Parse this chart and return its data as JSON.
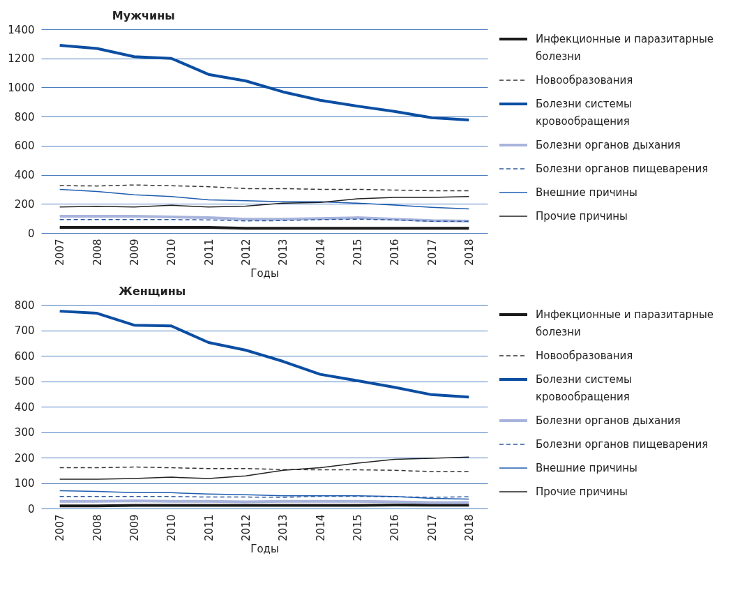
{
  "chart_data": [
    {
      "type": "line",
      "title": "Мужчины",
      "xlabel": "Годы",
      "legend": "right",
      "grid": "y",
      "marker": "none",
      "categories": [
        "2007",
        "2008",
        "2009",
        "2010",
        "2011",
        "2012",
        "2013",
        "2014",
        "2015",
        "2016",
        "2017",
        "2018"
      ],
      "ylim": [
        0,
        1400
      ],
      "yticks": [
        0,
        200,
        400,
        600,
        800,
        1000,
        1200,
        1400
      ],
      "series": [
        {
          "name": "Инфекционные и паразитарные болезни",
          "color": "#1a1a1a",
          "line_style": "solid",
          "values": [
            38,
            38,
            38,
            38,
            38,
            32,
            32,
            32,
            32,
            32,
            32,
            32
          ]
        },
        {
          "name": "Новообразования",
          "color": "#333333",
          "line_style": "dashed",
          "values": [
            325,
            323,
            330,
            325,
            318,
            305,
            305,
            300,
            300,
            295,
            290,
            290
          ]
        },
        {
          "name": "Болезни системы кровообращения",
          "color": "#0b4ea2",
          "line_style": "solid",
          "values": [
            1290,
            1268,
            1212,
            1200,
            1090,
            1045,
            970,
            912,
            872,
            835,
            792,
            777
          ]
        },
        {
          "name": "Болезни органов дыхания",
          "color": "#a9b4dc",
          "line_style": "solid",
          "values": [
            115,
            115,
            115,
            110,
            105,
            95,
            95,
            100,
            105,
            95,
            85,
            82
          ]
        },
        {
          "name": "Болезни органов пищеварения",
          "color": "#2c5aa0",
          "line_style": "dashed",
          "values": [
            92,
            92,
            92,
            92,
            90,
            83,
            85,
            92,
            95,
            90,
            80,
            80
          ]
        },
        {
          "name": "Внешние причины",
          "color": "#1f5db0",
          "line_style": "solid",
          "values": [
            300,
            285,
            262,
            250,
            228,
            222,
            215,
            215,
            205,
            192,
            176,
            165
          ]
        },
        {
          "name": "Прочие причины",
          "color": "#222222",
          "line_style": "solid",
          "values": [
            178,
            183,
            178,
            190,
            178,
            185,
            205,
            210,
            235,
            245,
            245,
            250
          ]
        }
      ]
    },
    {
      "type": "line",
      "title": "Женщины",
      "xlabel": "Годы",
      "legend": "right",
      "grid": "y",
      "marker": "none",
      "categories": [
        "2007",
        "2008",
        "2009",
        "2010",
        "2011",
        "2012",
        "2013",
        "2014",
        "2015",
        "2016",
        "2017",
        "2018"
      ],
      "ylim": [
        0,
        800
      ],
      "yticks": [
        0,
        100,
        200,
        300,
        400,
        500,
        600,
        700,
        800
      ],
      "series": [
        {
          "name": "Инфекционные и паразитарные болезни",
          "color": "#1a1a1a",
          "line_style": "solid",
          "values": [
            10,
            10,
            12,
            12,
            12,
            12,
            12,
            12,
            12,
            14,
            13,
            13
          ]
        },
        {
          "name": "Новообразования",
          "color": "#333333",
          "line_style": "dashed",
          "values": [
            160,
            160,
            163,
            160,
            157,
            157,
            153,
            152,
            152,
            150,
            145,
            145
          ]
        },
        {
          "name": "Болезни системы кровообращения",
          "color": "#0b4ea2",
          "line_style": "solid",
          "values": [
            775,
            767,
            720,
            717,
            652,
            622,
            578,
            527,
            502,
            476,
            447,
            438
          ]
        },
        {
          "name": "Болезни органов дыхания",
          "color": "#a9b4dc",
          "line_style": "solid",
          "values": [
            28,
            28,
            30,
            28,
            28,
            26,
            28,
            28,
            28,
            26,
            23,
            23
          ]
        },
        {
          "name": "Болезни органов пищеварения",
          "color": "#2c5aa0",
          "line_style": "dashed",
          "values": [
            47,
            47,
            47,
            47,
            45,
            45,
            44,
            48,
            48,
            46,
            44,
            46
          ]
        },
        {
          "name": "Внешние причины",
          "color": "#1f5db0",
          "line_style": "solid",
          "values": [
            70,
            67,
            62,
            62,
            57,
            54,
            50,
            50,
            50,
            47,
            40,
            37
          ]
        },
        {
          "name": "Прочие причины",
          "color": "#222222",
          "line_style": "solid",
          "values": [
            115,
            115,
            118,
            123,
            118,
            128,
            150,
            160,
            178,
            193,
            197,
            202
          ]
        }
      ]
    }
  ]
}
